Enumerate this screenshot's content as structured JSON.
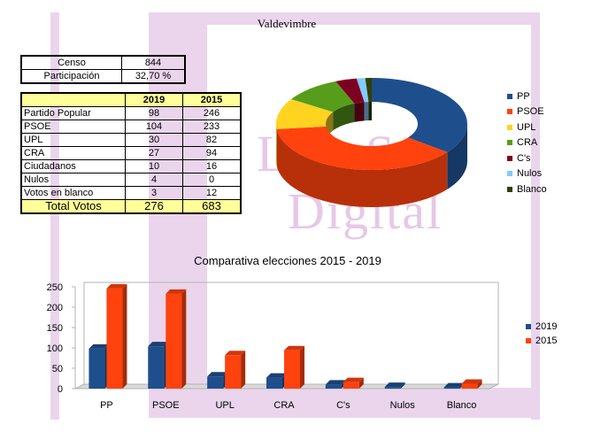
{
  "page_title": "Valdevimbre",
  "census": [
    {
      "label": "Censo",
      "value": "844"
    },
    {
      "label": "Participación",
      "value": "32,70 %"
    }
  ],
  "results_table": {
    "headers": [
      "",
      "2019",
      "2015"
    ],
    "rows": [
      {
        "label": "Partido Popular",
        "v2019": "98",
        "v2015": "246"
      },
      {
        "label": "PSOE",
        "v2019": "104",
        "v2015": "233"
      },
      {
        "label": "UPL",
        "v2019": "30",
        "v2015": "82"
      },
      {
        "label": "CRA",
        "v2019": "27",
        "v2015": "94"
      },
      {
        "label": "Ciudadanos",
        "v2019": "10",
        "v2015": "16"
      },
      {
        "label": "Nulos",
        "v2019": "4",
        "v2015": "0"
      },
      {
        "label": "Votos en blanco",
        "v2019": "3",
        "v2015": "12"
      }
    ],
    "total": {
      "label": "Total Votos",
      "v2019": "276",
      "v2015": "683"
    }
  },
  "watermark": {
    "line1": "LeónSur",
    "line2": "Digital"
  },
  "colors": {
    "PP": "#1f4e8c",
    "PSOE": "#ff420e",
    "UPL": "#ffd320",
    "CRA": "#579d1c",
    "Cs": "#7e0021",
    "Nulos": "#83caff",
    "Blanco": "#314004",
    "y2019": "#1f4e8c",
    "y2015": "#ff420e",
    "watermark": "#ead5ec"
  },
  "chart_data": [
    {
      "type": "pie",
      "variant": "3d-donut",
      "labels": [
        "PP",
        "PSOE",
        "UPL",
        "CRA",
        "C's",
        "Nulos",
        "Blanco"
      ],
      "values": [
        98,
        104,
        30,
        27,
        10,
        4,
        3
      ],
      "legend_position": "right"
    },
    {
      "type": "bar",
      "title": "Comparativa elecciones 2015 - 2019",
      "categories": [
        "PP",
        "PSOE",
        "UPL",
        "CRA",
        "C's",
        "Nulos",
        "Blanco"
      ],
      "series": [
        {
          "name": "2019",
          "values": [
            98,
            104,
            30,
            27,
            10,
            4,
            3
          ]
        },
        {
          "name": "2015",
          "values": [
            246,
            233,
            82,
            94,
            16,
            0,
            12
          ]
        }
      ],
      "ylim": [
        0,
        250
      ],
      "yticks": [
        0,
        50,
        100,
        150,
        200,
        250
      ],
      "grid": false,
      "legend_position": "right"
    }
  ]
}
